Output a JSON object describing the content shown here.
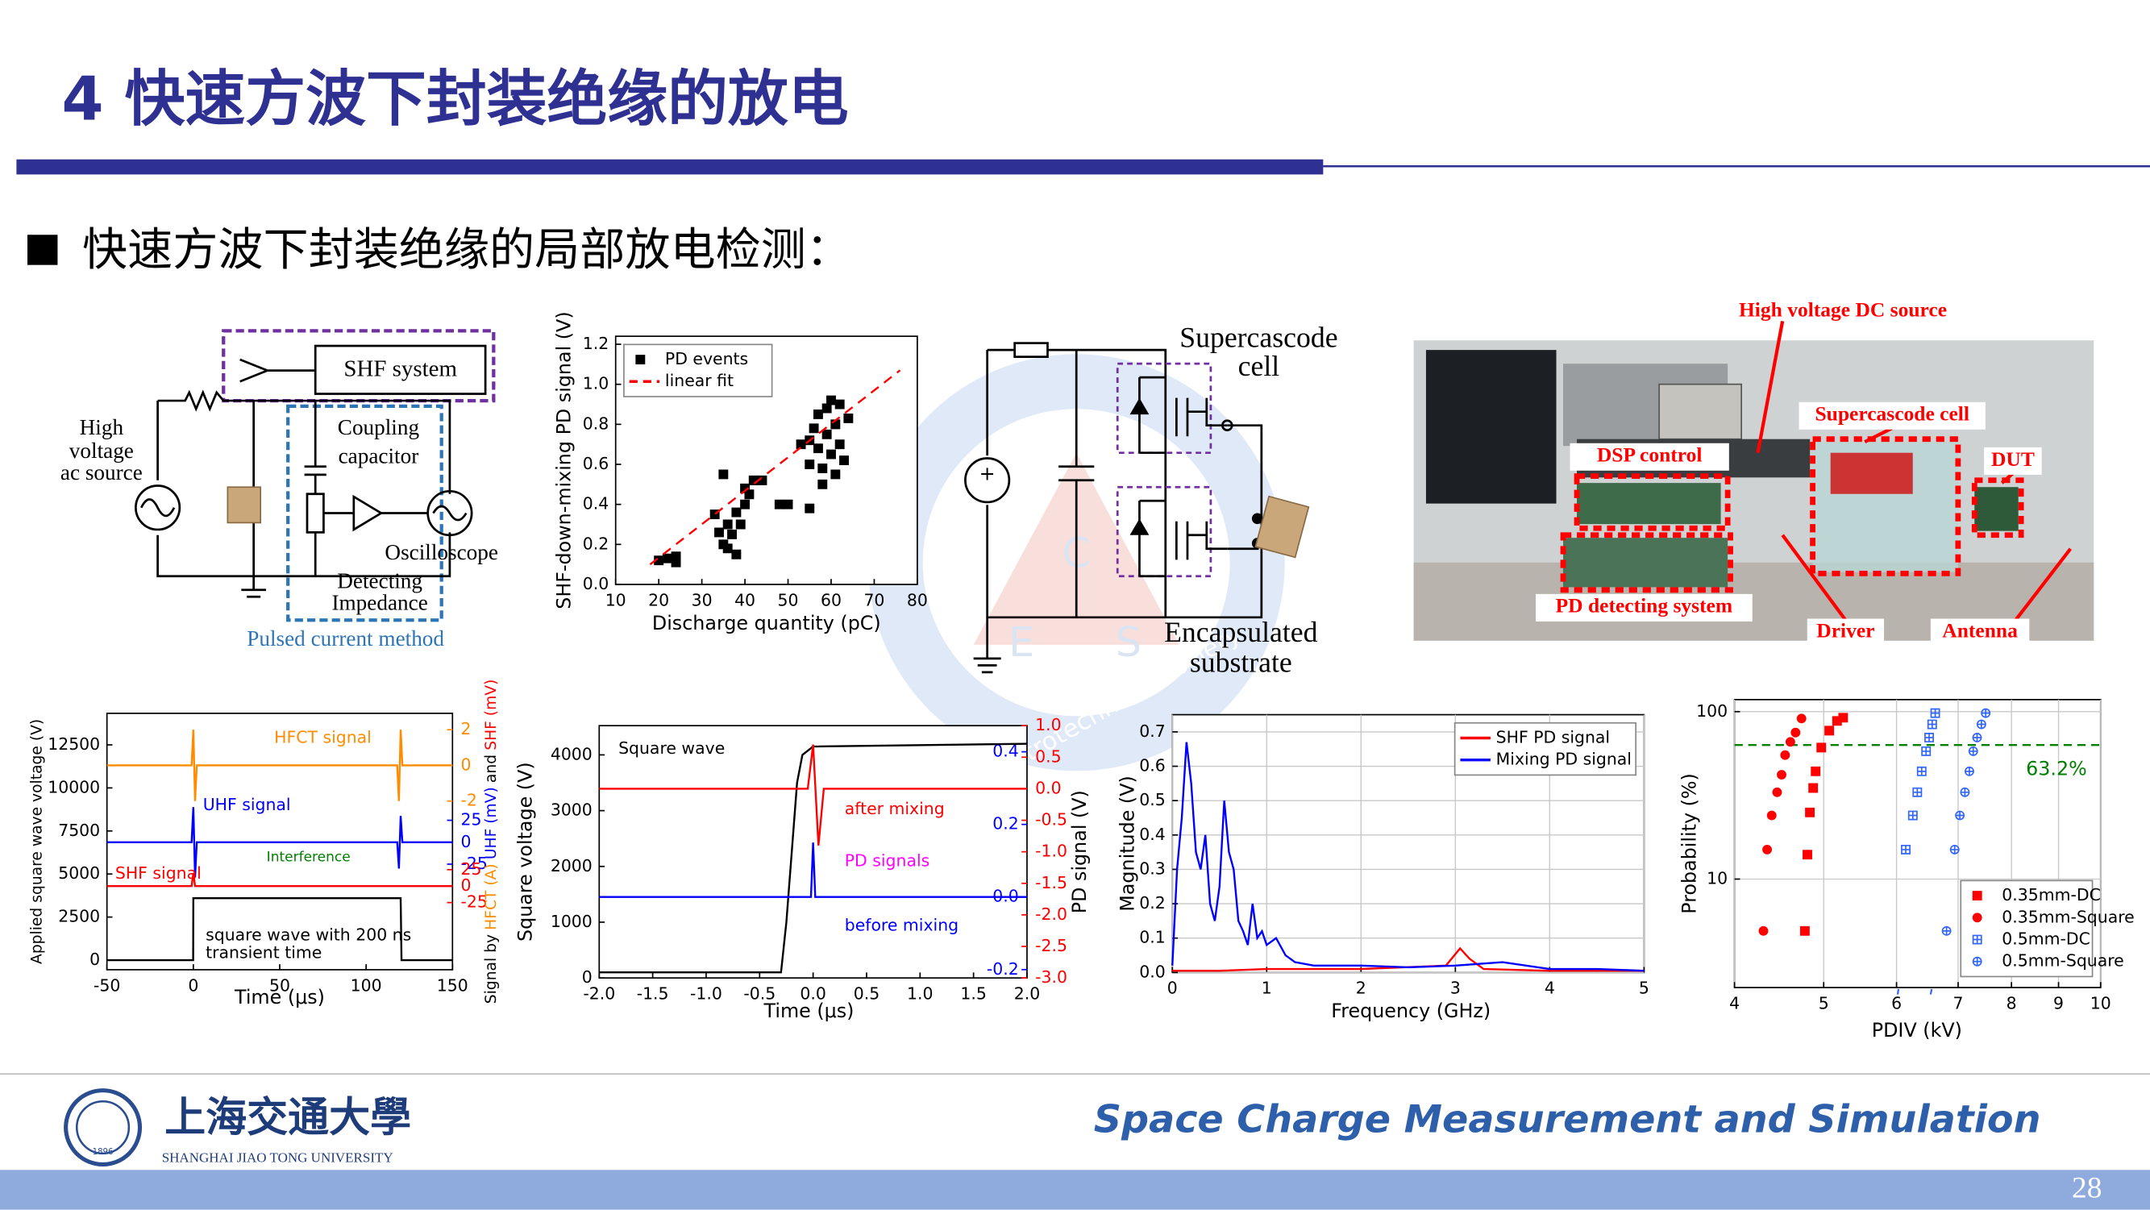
{
  "header": {
    "title": "4 快速方波下封装绝缘的放电",
    "bullet": "快速方波下封装绝缘的局部放电检测："
  },
  "circuit": {
    "shf": "SHF system",
    "source": [
      "High",
      "voltage",
      "ac source"
    ],
    "coupling": [
      "Coupling",
      "capacitor"
    ],
    "scope": "Oscilloscope",
    "impedance": [
      "Detecting",
      "Impedance"
    ],
    "caption": "Pulsed current method"
  },
  "topology": {
    "cell": [
      "Supercascode",
      "cell"
    ],
    "substrate": [
      "Encapsulated",
      "substrate"
    ]
  },
  "photo": {
    "labels": [
      "High voltage DC source",
      "Supercascode cell",
      "DSP control",
      "DUT",
      "PD detecting system",
      "Driver",
      "Antenna"
    ]
  },
  "watermark": {
    "letters": [
      "C",
      "E",
      "S"
    ],
    "text": "China Electrotechnical Society"
  },
  "footer": {
    "university_cn": "上海交通大學",
    "university_en": "SHANGHAI JIAO TONG UNIVERSITY",
    "logo_year": "1896",
    "course": "Space Charge Measurement and Simulation",
    "page": 28
  },
  "chart_data": [
    {
      "type": "scatter",
      "xlabel": "Discharge quantity (pC)",
      "ylabel": "SHF-down-mixing PD signal (V)",
      "xlim": [
        10,
        80
      ],
      "ylim": [
        0,
        1.24
      ],
      "xticks": [
        10,
        20,
        30,
        40,
        50,
        60,
        70,
        80
      ],
      "yticks": [
        {
          "value": 0,
          "label": "0.0"
        },
        0.2,
        0.4,
        0.6,
        0.8,
        {
          "value": 1,
          "label": "1.0"
        },
        1.2
      ],
      "legend": "upper left",
      "series": [
        {
          "name": "PD events",
          "color": "#000000",
          "marker": "square",
          "x": [
            20,
            22,
            24,
            24,
            33,
            34,
            35,
            35,
            36,
            36,
            37,
            38,
            38,
            39,
            40,
            40,
            41,
            42,
            44,
            48,
            50,
            53,
            55,
            55,
            56,
            57,
            57,
            58,
            58,
            59,
            59,
            60,
            60,
            61,
            61,
            62,
            62,
            63,
            64,
            55
          ],
          "values": [
            0.12,
            0.13,
            0.11,
            0.14,
            0.35,
            0.26,
            0.55,
            0.2,
            0.3,
            0.18,
            0.25,
            0.36,
            0.15,
            0.3,
            0.4,
            0.48,
            0.45,
            0.52,
            0.52,
            0.4,
            0.4,
            0.7,
            0.72,
            0.6,
            0.78,
            0.85,
            0.68,
            0.58,
            0.5,
            0.88,
            0.75,
            0.92,
            0.65,
            0.8,
            0.55,
            0.7,
            0.9,
            0.62,
            0.83,
            0.38
          ]
        },
        {
          "name": "linear fit",
          "color": "#ff0000",
          "dash": true,
          "x": [
            18,
            76
          ],
          "values": [
            0.1,
            1.07
          ]
        }
      ]
    },
    {
      "type": "line",
      "xlabel": "Time (μs)",
      "ylabel": "Applied square wave voltage (V)",
      "y2label": [
        "Signal by",
        "HFCT (A)",
        "UHF (mV)",
        "and",
        "SHF (mV)"
      ],
      "xlim": [
        -50,
        150
      ],
      "ylim": [
        -557,
        14331
      ],
      "xticks": [
        -50,
        0,
        50,
        100,
        150
      ],
      "yticks": [
        0,
        2500,
        5000,
        7500,
        10000,
        12500
      ],
      "y2lim": [
        -11.46,
        2.92
      ],
      "y2ticks": [
        2,
        0,
        -2
      ],
      "y2color": "#ff8c00",
      "y3lim": [
        -145.3,
        146.9
      ],
      "y3ticks": [
        25,
        0,
        -25
      ],
      "y3color": "#0000ff",
      "y4lim": [
        -127,
        262.5
      ],
      "y4ticks": [
        25,
        0,
        -25
      ],
      "y4color": "#ff0000",
      "annotations": [
        "Interference",
        "square wave with 200 ns",
        "transient time"
      ],
      "series": [
        {
          "color": "#000000",
          "x": [
            -50,
            -0.1,
            0,
            120,
            120.5,
            150
          ],
          "values": [
            0,
            0,
            3600,
            3600,
            0,
            0
          ]
        },
        {
          "name": "HFCT signal",
          "axis": "y2",
          "color": "#ff8c00",
          "x": [
            -50,
            -1,
            0,
            1,
            2,
            118,
            119,
            120,
            121,
            150
          ],
          "values": [
            0,
            0,
            2,
            -2,
            0,
            0,
            -2,
            2,
            0,
            0
          ]
        },
        {
          "name": "UHF signal",
          "axis": "y3",
          "color": "#0000ff",
          "x": [
            -50,
            -1,
            0,
            1,
            2,
            118,
            119,
            120,
            121,
            150
          ],
          "values": [
            0,
            0,
            40,
            -40,
            0,
            0,
            -30,
            30,
            0,
            0
          ]
        },
        {
          "name": "SHF signal",
          "axis": "y4",
          "color": "#ff0000",
          "x": [
            -50,
            -1,
            0,
            1,
            150
          ],
          "values": [
            0,
            0,
            20,
            0,
            0
          ]
        }
      ]
    },
    {
      "type": "line",
      "xlabel": "Time (μs)",
      "ylabel": "Square voltage (V)",
      "y2label": "PD signal (V)",
      "xlim": [
        -2,
        2
      ],
      "ylim": [
        0,
        4524
      ],
      "xticks": [
        {
          "value": -2,
          "label": "-2.0"
        },
        -1.5,
        {
          "value": -1,
          "label": "-1.0"
        },
        -0.5,
        {
          "value": 0,
          "label": "0.0"
        },
        0.5,
        {
          "value": 1,
          "label": "1.0"
        },
        1.5,
        {
          "value": 2,
          "label": "2.0"
        }
      ],
      "yticks": [
        0,
        1000,
        2000,
        3000,
        4000
      ],
      "y2lim": [
        -3,
        1
      ],
      "y2ticks": [
        {
          "value": 1,
          "label": "1.0"
        },
        0.5,
        {
          "value": 0,
          "label": "0.0"
        },
        -0.5,
        {
          "value": -1,
          "label": "-1.0"
        },
        -1.5,
        {
          "value": -2,
          "label": "-2.0"
        },
        -2.5,
        {
          "value": -3,
          "label": "-3.0"
        }
      ],
      "y2color": "#ff0000",
      "y3lim": [
        -0.223,
        0.472
      ],
      "y3ticks": [
        0.4,
        0.2,
        {
          "value": 0,
          "label": "0.0"
        },
        -0.2
      ],
      "y3color": "#0000ff",
      "annotations": [
        "PD signals"
      ],
      "series": [
        {
          "name": "Square wave",
          "color": "#000000",
          "x": [
            -2,
            -0.3,
            -0.25,
            -0.15,
            -0.1,
            0,
            2
          ],
          "values": [
            100,
            100,
            1000,
            3500,
            4000,
            4150,
            4200
          ]
        },
        {
          "name": "after mixing",
          "axis": "y2",
          "color": "#ff0000",
          "x": [
            -2,
            -0.05,
            0,
            0.05,
            0.1,
            2
          ],
          "values": [
            0,
            0,
            0.7,
            -0.9,
            0,
            0
          ]
        },
        {
          "name": "before mixing",
          "axis": "y3",
          "color": "#0000ff",
          "x": [
            -2,
            -0.02,
            0,
            0.02,
            2
          ],
          "values": [
            0,
            0,
            0.15,
            0,
            0
          ]
        }
      ]
    },
    {
      "type": "line",
      "xlabel": "Frequency (GHz)",
      "ylabel": "Magnitude (V)",
      "xlim": [
        0,
        5
      ],
      "ylim": [
        0,
        0.75
      ],
      "xticks": [
        0,
        1,
        2,
        3,
        4,
        5
      ],
      "yticks": [
        {
          "value": 0,
          "label": "0.0"
        },
        0.1,
        0.2,
        0.3,
        0.4,
        0.5,
        0.6,
        0.7
      ],
      "grid": true,
      "legend": "upper right",
      "series": [
        {
          "name": "SHF PD signal",
          "color": "#ff0000",
          "x": [
            0,
            0.5,
            1,
            2,
            2.9,
            3.05,
            3.15,
            3.3,
            4,
            5
          ],
          "values": [
            0.005,
            0.005,
            0.01,
            0.01,
            0.02,
            0.07,
            0.04,
            0.01,
            0.005,
            0.005
          ]
        },
        {
          "name": "Mixing PD signal",
          "color": "#0000ff",
          "x": [
            0,
            0.05,
            0.1,
            0.15,
            0.2,
            0.25,
            0.3,
            0.35,
            0.4,
            0.45,
            0.5,
            0.55,
            0.6,
            0.65,
            0.7,
            0.75,
            0.8,
            0.85,
            0.9,
            0.95,
            1,
            1.1,
            1.2,
            1.3,
            1.5,
            2,
            2.5,
            3,
            3.5,
            4,
            4.5,
            5
          ],
          "values": [
            0.02,
            0.3,
            0.45,
            0.67,
            0.55,
            0.35,
            0.3,
            0.4,
            0.2,
            0.15,
            0.25,
            0.5,
            0.35,
            0.3,
            0.15,
            0.12,
            0.08,
            0.2,
            0.1,
            0.12,
            0.08,
            0.1,
            0.05,
            0.03,
            0.02,
            0.02,
            0.015,
            0.02,
            0.03,
            0.01,
            0.01,
            0.005
          ]
        }
      ]
    },
    {
      "type": "scatter",
      "xlabel": "PDIV (kV)",
      "ylabel": "Probability (%)",
      "xlog": true,
      "ylog": true,
      "xlim": [
        4,
        10
      ],
      "ylim": [
        2.25,
        118
      ],
      "xticks": [
        4,
        5,
        6,
        7,
        8,
        9,
        10
      ],
      "yticks": [
        10,
        100
      ],
      "grid": true,
      "legend": "lower right",
      "hline": {
        "value": 63.2,
        "label": "63.2%",
        "color": "#008000"
      },
      "series": [
        {
          "name": "0.35mm-DC",
          "color": "#ff0000",
          "marker": "square",
          "x": [
            4.77,
            4.8,
            4.83,
            4.87,
            4.9,
            4.97,
            5.07,
            5.17,
            5.25
          ],
          "values": [
            4.9,
            14,
            25,
            35,
            44,
            61,
            77,
            88,
            92
          ]
        },
        {
          "name": "0.35mm-Square",
          "color": "#ff0000",
          "marker": "circle",
          "x": [
            4.3,
            4.34,
            4.39,
            4.45,
            4.5,
            4.54,
            4.6,
            4.66,
            4.73
          ],
          "values": [
            4.9,
            15,
            24,
            33,
            42,
            55,
            66,
            75,
            91
          ]
        },
        {
          "name": "0.5mm-DC",
          "color": "#3366ff",
          "marker": "boxplus",
          "x": [
            6.14,
            6.25,
            6.32,
            6.39,
            6.46,
            6.51,
            6.56,
            6.61
          ],
          "values": [
            15,
            24,
            33,
            44,
            58,
            70,
            84,
            98
          ]
        },
        {
          "name": "0.5mm-Square",
          "color": "#3366ff",
          "marker": "circleplus",
          "x": [
            6.8,
            6.94,
            7.03,
            7.12,
            7.2,
            7.27,
            7.34,
            7.42,
            7.5
          ],
          "values": [
            4.9,
            15,
            24,
            33,
            44,
            58,
            70,
            84,
            98
          ]
        }
      ]
    }
  ]
}
